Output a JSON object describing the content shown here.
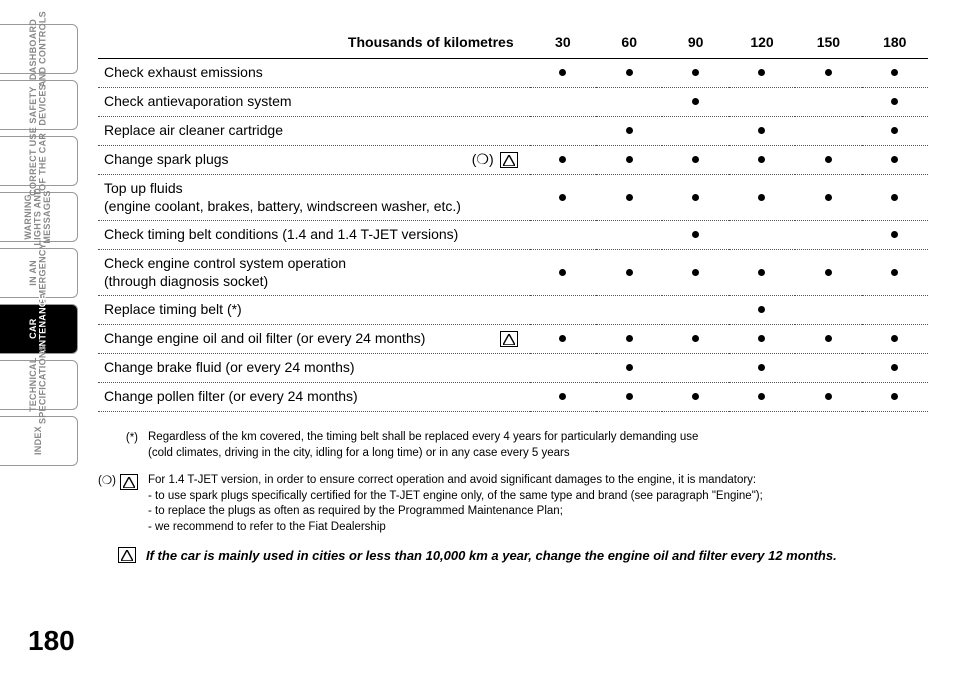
{
  "page_number": "180",
  "sidebar": {
    "active_index": 5,
    "tabs": [
      "DASHBOARD\nAND CONTROLS",
      "SAFETY\nDEVICES",
      "CORRECT USE\nOF THE CAR",
      "WARNING\nLIGHTS AND\nMESSAGES",
      "IN AN\nEMERGENCY",
      "CAR\nMAINTENANCE",
      "TECHNICAL\nSPECIFICATIONS",
      "INDEX"
    ]
  },
  "table": {
    "header_label": "Thousands of kilometres",
    "columns": [
      "30",
      "60",
      "90",
      "120",
      "150",
      "180"
    ],
    "rows": [
      {
        "label": "Check exhaust emissions",
        "marks": [
          1,
          1,
          1,
          1,
          1,
          1
        ]
      },
      {
        "label": "Check antievaporation system",
        "marks": [
          0,
          0,
          1,
          0,
          0,
          1
        ]
      },
      {
        "label": "Replace air cleaner cartridge",
        "marks": [
          0,
          1,
          0,
          1,
          0,
          1
        ]
      },
      {
        "label": "Change spark plugs",
        "ring": true,
        "triangle": true,
        "marks": [
          1,
          1,
          1,
          1,
          1,
          1
        ]
      },
      {
        "label": "Top up fluids\n(engine coolant, brakes, battery, windscreen washer, etc.)",
        "tall": true,
        "marks": [
          1,
          1,
          1,
          1,
          1,
          1
        ]
      },
      {
        "label": "Check timing belt conditions (1.4 and 1.4 T-JET  versions)",
        "marks": [
          0,
          0,
          1,
          0,
          0,
          1
        ]
      },
      {
        "label": "Check engine control system operation\n(through diagnosis socket)",
        "tall": true,
        "marks": [
          1,
          1,
          1,
          1,
          1,
          1
        ]
      },
      {
        "label": "Replace timing belt (*)",
        "marks": [
          0,
          0,
          0,
          1,
          0,
          0
        ]
      },
      {
        "label": "Change engine oil and oil filter (or every 24 months)",
        "triangle": true,
        "marks": [
          1,
          1,
          1,
          1,
          1,
          1
        ]
      },
      {
        "label": "Change brake fluid (or every 24 months)",
        "marks": [
          0,
          1,
          0,
          1,
          0,
          1
        ]
      },
      {
        "label": "Change pollen filter (or every 24 months)",
        "marks": [
          1,
          1,
          1,
          1,
          1,
          1
        ]
      }
    ]
  },
  "footnotes": {
    "star": {
      "marker": "(*)",
      "text": "Regardless of the km covered, the timing belt shall be replaced every 4 years for particularly demanding use\n(cold climates, driving in the city, idling for a long time) or in any case every 5 years"
    },
    "ring": {
      "marker": "(❍)",
      "lead": "For 1.4 T-JET version, in order to ensure correct operation and avoid significant damages to the engine, it is mandatory:",
      "items": [
        "to use spark plugs specifically certified for the T-JET engine only, of the same type and brand (see paragraph \"Engine\");",
        "to replace the plugs as often as required by the Programmed Maintenance Plan;",
        "we recommend to refer to the Fiat Dealership"
      ]
    },
    "bold_note": "If the car is mainly used in cities or less than 10,000 km a year, change the engine oil and filter every 12 months."
  }
}
